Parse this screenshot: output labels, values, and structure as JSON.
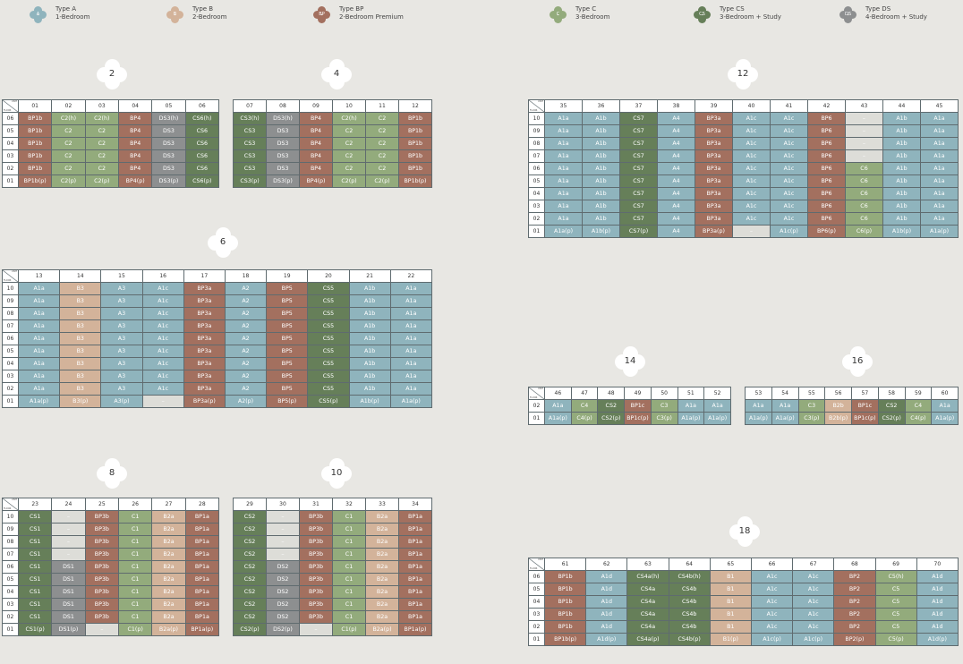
{
  "legend": [
    {
      "badge": "A",
      "type": "Type A",
      "desc": "1-Bedroom",
      "color": "#8fb4bd"
    },
    {
      "badge": "B",
      "type": "Type B",
      "desc": "2-Bedroom",
      "color": "#d3b39a"
    },
    {
      "badge": "BP",
      "type": "Type BP",
      "desc": "2-Bedroom Premium",
      "color": "#a3705f"
    },
    {
      "badge": "C",
      "type": "Type C",
      "desc": "3-Bedroom",
      "color": "#93ab7c"
    },
    {
      "badge": "CS",
      "type": "Type CS",
      "desc": "3-Bedroom + Study",
      "color": "#667f59"
    },
    {
      "badge": "DS",
      "type": "Type DS",
      "desc": "4-Bedroom + Study",
      "color": "#8d8f90"
    }
  ],
  "corner": {
    "unit": "UNIT",
    "floor": "FLOOR"
  },
  "blocks": [
    {
      "id": "2",
      "units": [
        "01",
        "02",
        "03",
        "04",
        "05",
        "06"
      ],
      "floors": [
        "06",
        "05",
        "04",
        "03",
        "02",
        "01"
      ],
      "rows": [
        [
          "BP1b",
          "C2(h)",
          "C2(h)",
          "BP4",
          "DS3(h)",
          "CS6(h)"
        ],
        [
          "BP1b",
          "C2",
          "C2",
          "BP4",
          "DS3",
          "CS6"
        ],
        [
          "BP1b",
          "C2",
          "C2",
          "BP4",
          "DS3",
          "CS6"
        ],
        [
          "BP1b",
          "C2",
          "C2",
          "BP4",
          "DS3",
          "CS6"
        ],
        [
          "BP1b",
          "C2",
          "C2",
          "BP4",
          "DS3",
          "CS6"
        ],
        [
          "BP1b(p)",
          "C2(p)",
          "C2(p)",
          "BP4(p)",
          "DS3(p)",
          "CS6(p)"
        ]
      ]
    },
    {
      "id": "4",
      "units": [
        "07",
        "08",
        "09",
        "10",
        "11",
        "12"
      ],
      "floors": [
        "06",
        "05",
        "04",
        "03",
        "02",
        "01"
      ],
      "rows": [
        [
          "CS3(h)",
          "DS3(h)",
          "BP4",
          "C2(h)",
          "C2",
          "BP1b"
        ],
        [
          "CS3",
          "DS3",
          "BP4",
          "C2",
          "C2",
          "BP1b"
        ],
        [
          "CS3",
          "DS3",
          "BP4",
          "C2",
          "C2",
          "BP1b"
        ],
        [
          "CS3",
          "DS3",
          "BP4",
          "C2",
          "C2",
          "BP1b"
        ],
        [
          "CS3",
          "DS3",
          "BP4",
          "C2",
          "C2",
          "BP1b"
        ],
        [
          "CS3(p)",
          "DS3(p)",
          "BP4(p)",
          "C2(p)",
          "C2(p)",
          "BP1b(p)"
        ]
      ]
    },
    {
      "id": "12",
      "units": [
        "35",
        "36",
        "37",
        "38",
        "39",
        "40",
        "41",
        "42",
        "43",
        "44",
        "45"
      ],
      "floors": [
        "10",
        "09",
        "08",
        "07",
        "06",
        "05",
        "04",
        "03",
        "02",
        "01"
      ],
      "rows": [
        [
          "A1a",
          "A1b",
          "CS7",
          "A4",
          "BP3a",
          "A1c",
          "A1c",
          "BP6",
          "–",
          "A1b",
          "A1a"
        ],
        [
          "A1a",
          "A1b",
          "CS7",
          "A4",
          "BP3a",
          "A1c",
          "A1c",
          "BP6",
          "–",
          "A1b",
          "A1a"
        ],
        [
          "A1a",
          "A1b",
          "CS7",
          "A4",
          "BP3a",
          "A1c",
          "A1c",
          "BP6",
          "–",
          "A1b",
          "A1a"
        ],
        [
          "A1a",
          "A1b",
          "CS7",
          "A4",
          "BP3a",
          "A1c",
          "A1c",
          "BP6",
          "–",
          "A1b",
          "A1a"
        ],
        [
          "A1a",
          "A1b",
          "CS7",
          "A4",
          "BP3a",
          "A1c",
          "A1c",
          "BP6",
          "C6",
          "A1b",
          "A1a"
        ],
        [
          "A1a",
          "A1b",
          "CS7",
          "A4",
          "BP3a",
          "A1c",
          "A1c",
          "BP6",
          "C6",
          "A1b",
          "A1a"
        ],
        [
          "A1a",
          "A1b",
          "CS7",
          "A4",
          "BP3a",
          "A1c",
          "A1c",
          "BP6",
          "C6",
          "A1b",
          "A1a"
        ],
        [
          "A1a",
          "A1b",
          "CS7",
          "A4",
          "BP3a",
          "A1c",
          "A1c",
          "BP6",
          "C6",
          "A1b",
          "A1a"
        ],
        [
          "A1a",
          "A1b",
          "CS7",
          "A4",
          "BP3a",
          "A1c",
          "A1c",
          "BP6",
          "C6",
          "A1b",
          "A1a"
        ],
        [
          "A1a(p)",
          "A1b(p)",
          "CS7(p)",
          "A4",
          "BP3a(p)",
          "–",
          "A1c(p)",
          "BP6(p)",
          "C6(p)",
          "A1b(p)",
          "A1a(p)"
        ]
      ]
    },
    {
      "id": "6",
      "units": [
        "13",
        "14",
        "15",
        "16",
        "17",
        "18",
        "19",
        "20",
        "21",
        "22"
      ],
      "floors": [
        "10",
        "09",
        "08",
        "07",
        "06",
        "05",
        "04",
        "03",
        "02",
        "01"
      ],
      "rows": [
        [
          "A1a",
          "B3",
          "A3",
          "A1c",
          "BP3a",
          "A2",
          "BP5",
          "CS5",
          "A1b",
          "A1a"
        ],
        [
          "A1a",
          "B3",
          "A3",
          "A1c",
          "BP3a",
          "A2",
          "BP5",
          "CS5",
          "A1b",
          "A1a"
        ],
        [
          "A1a",
          "B3",
          "A3",
          "A1c",
          "BP3a",
          "A2",
          "BP5",
          "CS5",
          "A1b",
          "A1a"
        ],
        [
          "A1a",
          "B3",
          "A3",
          "A1c",
          "BP3a",
          "A2",
          "BP5",
          "CS5",
          "A1b",
          "A1a"
        ],
        [
          "A1a",
          "B3",
          "A3",
          "A1c",
          "BP3a",
          "A2",
          "BP5",
          "CS5",
          "A1b",
          "A1a"
        ],
        [
          "A1a",
          "B3",
          "A3",
          "A1c",
          "BP3a",
          "A2",
          "BP5",
          "CS5",
          "A1b",
          "A1a"
        ],
        [
          "A1a",
          "B3",
          "A3",
          "A1c",
          "BP3a",
          "A2",
          "BP5",
          "CS5",
          "A1b",
          "A1a"
        ],
        [
          "A1a",
          "B3",
          "A3",
          "A1c",
          "BP3a",
          "A2",
          "BP5",
          "CS5",
          "A1b",
          "A1a"
        ],
        [
          "A1a",
          "B3",
          "A3",
          "A1c",
          "BP3a",
          "A2",
          "BP5",
          "CS5",
          "A1b",
          "A1a"
        ],
        [
          "A1a(p)",
          "B3(p)",
          "A3(p)",
          "–",
          "BP3a(p)",
          "A2(p)",
          "BP5(p)",
          "CS5(p)",
          "A1b(p)",
          "A1a(p)"
        ]
      ]
    },
    {
      "id": "14",
      "units": [
        "46",
        "47",
        "48",
        "49",
        "50",
        "51",
        "52"
      ],
      "floors": [
        "02",
        "01"
      ],
      "rows": [
        [
          "A1a",
          "C4",
          "CS2",
          "BP1c",
          "C3",
          "A1a",
          "A1a"
        ],
        [
          "A1a(p)",
          "C4(p)",
          "CS2(p)",
          "BP1c(p)",
          "C3(p)",
          "A1a(p)",
          "A1a(p)"
        ]
      ]
    },
    {
      "id": "16",
      "units": [
        "53",
        "54",
        "55",
        "56",
        "57",
        "58",
        "59",
        "60"
      ],
      "floors": [
        "02",
        "01"
      ],
      "rows": [
        [
          "A1a",
          "A1a",
          "C3",
          "B2b",
          "BP1c",
          "CS2",
          "C4",
          "A1a"
        ],
        [
          "A1a(p)",
          "A1a(p)",
          "C3(p)",
          "B2b(p)",
          "BP1c(p)",
          "CS2(p)",
          "C4(p)",
          "A1a(p)"
        ]
      ]
    },
    {
      "id": "8",
      "units": [
        "23",
        "24",
        "25",
        "26",
        "27",
        "28"
      ],
      "floors": [
        "10",
        "09",
        "08",
        "07",
        "06",
        "05",
        "04",
        "03",
        "02",
        "01"
      ],
      "rows": [
        [
          "CS1",
          "–",
          "BP3b",
          "C1",
          "B2a",
          "BP1a"
        ],
        [
          "CS1",
          "–",
          "BP3b",
          "C1",
          "B2a",
          "BP1a"
        ],
        [
          "CS1",
          "–",
          "BP3b",
          "C1",
          "B2a",
          "BP1a"
        ],
        [
          "CS1",
          "–",
          "BP3b",
          "C1",
          "B2a",
          "BP1a"
        ],
        [
          "CS1",
          "DS1",
          "BP3b",
          "C1",
          "B2a",
          "BP1a"
        ],
        [
          "CS1",
          "DS1",
          "BP3b",
          "C1",
          "B2a",
          "BP1a"
        ],
        [
          "CS1",
          "DS1",
          "BP3b",
          "C1",
          "B2a",
          "BP1a"
        ],
        [
          "CS1",
          "DS1",
          "BP3b",
          "C1",
          "B2a",
          "BP1a"
        ],
        [
          "CS1",
          "DS1",
          "BP3b",
          "C1",
          "B2a",
          "BP1a"
        ],
        [
          "CS1(p)",
          "DS1(p)",
          "–",
          "C1(p)",
          "B2a(p)",
          "BP1a(p)"
        ]
      ]
    },
    {
      "id": "10",
      "units": [
        "29",
        "30",
        "31",
        "32",
        "33",
        "34"
      ],
      "floors": [
        "10",
        "09",
        "08",
        "07",
        "06",
        "05",
        "04",
        "03",
        "02",
        "01"
      ],
      "rows": [
        [
          "CS2",
          "–",
          "BP3b",
          "C1",
          "B2a",
          "BP1a"
        ],
        [
          "CS2",
          "–",
          "BP3b",
          "C1",
          "B2a",
          "BP1a"
        ],
        [
          "CS2",
          "–",
          "BP3b",
          "C1",
          "B2a",
          "BP1a"
        ],
        [
          "CS2",
          "–",
          "BP3b",
          "C1",
          "B2a",
          "BP1a"
        ],
        [
          "CS2",
          "DS2",
          "BP3b",
          "C1",
          "B2a",
          "BP1a"
        ],
        [
          "CS2",
          "DS2",
          "BP3b",
          "C1",
          "B2a",
          "BP1a"
        ],
        [
          "CS2",
          "DS2",
          "BP3b",
          "C1",
          "B2a",
          "BP1a"
        ],
        [
          "CS2",
          "DS2",
          "BP3b",
          "C1",
          "B2a",
          "BP1a"
        ],
        [
          "CS2",
          "DS2",
          "BP3b",
          "C1",
          "B2a",
          "BP1a"
        ],
        [
          "CS2(p)",
          "DS2(p)",
          "–",
          "C1(p)",
          "B2a(p)",
          "BP1a(p)"
        ]
      ]
    },
    {
      "id": "18",
      "units": [
        "61",
        "62",
        "63",
        "64",
        "65",
        "66",
        "67",
        "68",
        "69",
        "70"
      ],
      "floors": [
        "06",
        "05",
        "04",
        "03",
        "02",
        "01"
      ],
      "rows": [
        [
          "BP1b",
          "A1d",
          "CS4a(h)",
          "CS4b(h)",
          "B1",
          "A1c",
          "A1c",
          "BP2",
          "C5(h)",
          "A1d"
        ],
        [
          "BP1b",
          "A1d",
          "CS4a",
          "CS4b",
          "B1",
          "A1c",
          "A1c",
          "BP2",
          "C5",
          "A1d"
        ],
        [
          "BP1b",
          "A1d",
          "CS4a",
          "CS4b",
          "B1",
          "A1c",
          "A1c",
          "BP2",
          "C5",
          "A1d"
        ],
        [
          "BP1b",
          "A1d",
          "CS4a",
          "CS4b",
          "B1",
          "A1c",
          "A1c",
          "BP2",
          "C5",
          "A1d"
        ],
        [
          "BP1b",
          "A1d",
          "CS4a",
          "CS4b",
          "B1",
          "A1c",
          "A1c",
          "BP2",
          "C5",
          "A1d"
        ],
        [
          "BP1b(p)",
          "A1d(p)",
          "CS4a(p)",
          "CS4b(p)",
          "B1(p)",
          "A1c(p)",
          "A1c(p)",
          "BP2(p)",
          "C5(p)",
          "A1d(p)"
        ]
      ]
    }
  ]
}
